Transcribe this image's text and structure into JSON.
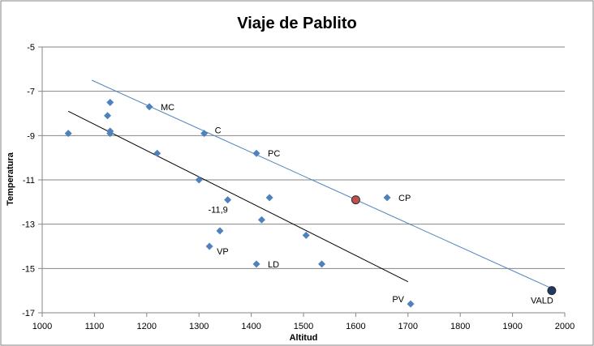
{
  "chart_data": {
    "type": "scatter",
    "title": "Viaje de Pablito",
    "xlabel": "Altitud",
    "ylabel": "Temperatura",
    "xlim": [
      1000,
      2000
    ],
    "ylim": [
      -17,
      -5
    ],
    "x_ticks": [
      "1000",
      "1100",
      "1200",
      "1300",
      "1400",
      "1500",
      "1600",
      "1700",
      "1800",
      "1900",
      "2000"
    ],
    "y_ticks": [
      "-5",
      "-7",
      "-9",
      "-11",
      "-13",
      "-15",
      "-17"
    ],
    "grid": {
      "horizontal": true,
      "vertical": false
    },
    "legend": "none",
    "colors": {
      "points": "#4F81BD",
      "highlight": "#C0504D",
      "special": "#1F3864",
      "trend_blue": "#4F81BD",
      "trend_black": "#000000",
      "grid": "#868686"
    },
    "series": [
      {
        "marker": "diamond",
        "points": [
          {
            "x": 1050,
            "y": -8.9,
            "label": ""
          },
          {
            "x": 1125,
            "y": -8.1,
            "label": ""
          },
          {
            "x": 1130,
            "y": -7.5,
            "label": ""
          },
          {
            "x": 1130,
            "y": -8.8,
            "label": ""
          },
          {
            "x": 1130,
            "y": -8.9,
            "label": ""
          },
          {
            "x": 1205,
            "y": -7.7,
            "label": "MC"
          },
          {
            "x": 1220,
            "y": -9.8,
            "label": ""
          },
          {
            "x": 1300,
            "y": -11.0,
            "label": ""
          },
          {
            "x": 1310,
            "y": -8.9,
            "label": "C"
          },
          {
            "x": 1320,
            "y": -14.0,
            "label": "VP"
          },
          {
            "x": 1340,
            "y": -13.3,
            "label": ""
          },
          {
            "x": 1355,
            "y": -11.9,
            "label": "-11,9"
          },
          {
            "x": 1410,
            "y": -9.8,
            "label": "PC"
          },
          {
            "x": 1410,
            "y": -14.8,
            "label": "LD"
          },
          {
            "x": 1420,
            "y": -12.8,
            "label": ""
          },
          {
            "x": 1435,
            "y": -11.8,
            "label": ""
          },
          {
            "x": 1505,
            "y": -13.5,
            "label": ""
          },
          {
            "x": 1535,
            "y": -14.8,
            "label": ""
          },
          {
            "x": 1660,
            "y": -11.8,
            "label": "CP"
          },
          {
            "x": 1705,
            "y": -16.6,
            "label": "PV"
          }
        ]
      },
      {
        "marker": "circle",
        "color": "#C0504D",
        "points": [
          {
            "x": 1600,
            "y": -11.9,
            "label": ""
          }
        ]
      },
      {
        "marker": "circle",
        "color": "#1F3864",
        "points": [
          {
            "x": 1975,
            "y": -16.0,
            "label": "VALD"
          }
        ]
      }
    ],
    "trendlines": [
      {
        "color": "#4F81BD",
        "from": {
          "x": 1095,
          "y": -6.5
        },
        "to": {
          "x": 1975,
          "y": -15.9
        }
      },
      {
        "color": "#000000",
        "from": {
          "x": 1050,
          "y": -7.9
        },
        "to": {
          "x": 1700,
          "y": -15.6
        }
      }
    ]
  }
}
